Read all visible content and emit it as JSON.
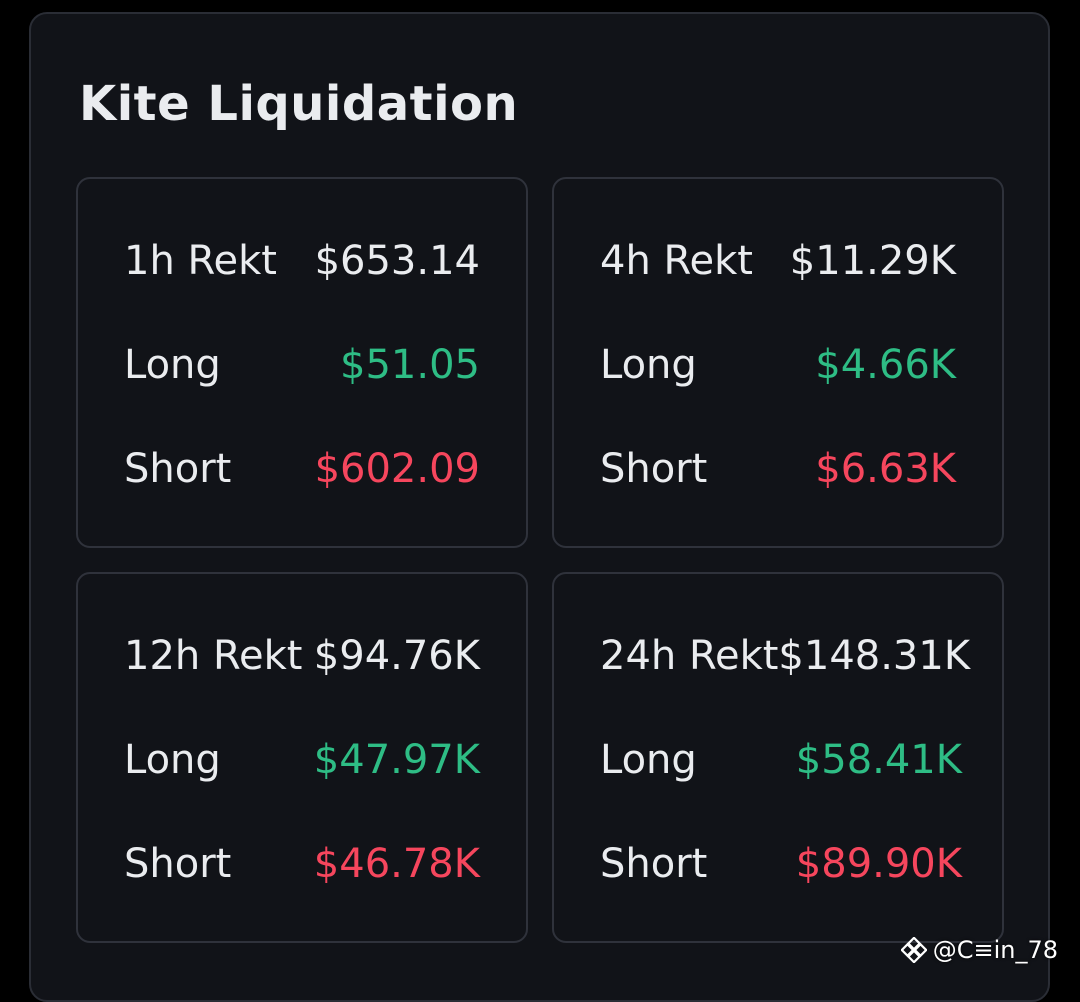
{
  "title": "Kite Liquidation",
  "colors": {
    "background": "#111318",
    "text": "#eaecef",
    "long": "#2ebd85",
    "short": "#f6465d"
  },
  "cards": [
    {
      "rekt_label": "1h Rekt",
      "rekt_value": "$653.14",
      "long_label": "Long",
      "long_value": "$51.05",
      "short_label": "Short",
      "short_value": "$602.09"
    },
    {
      "rekt_label": "4h Rekt",
      "rekt_value": "$11.29K",
      "long_label": "Long",
      "long_value": "$4.66K",
      "short_label": "Short",
      "short_value": "$6.63K"
    },
    {
      "rekt_label": "12h Rekt",
      "rekt_value": "$94.76K",
      "long_label": "Long",
      "long_value": "$47.97K",
      "short_label": "Short",
      "short_value": "$46.78K"
    },
    {
      "rekt_label": "24h Rekt",
      "rekt_value": "$148.31K",
      "long_label": "Long",
      "long_value": "$58.41K",
      "short_label": "Short",
      "short_value": "$89.90K"
    }
  ],
  "watermark": {
    "icon": "binance-logo-icon",
    "text": "@C≡in_78"
  }
}
